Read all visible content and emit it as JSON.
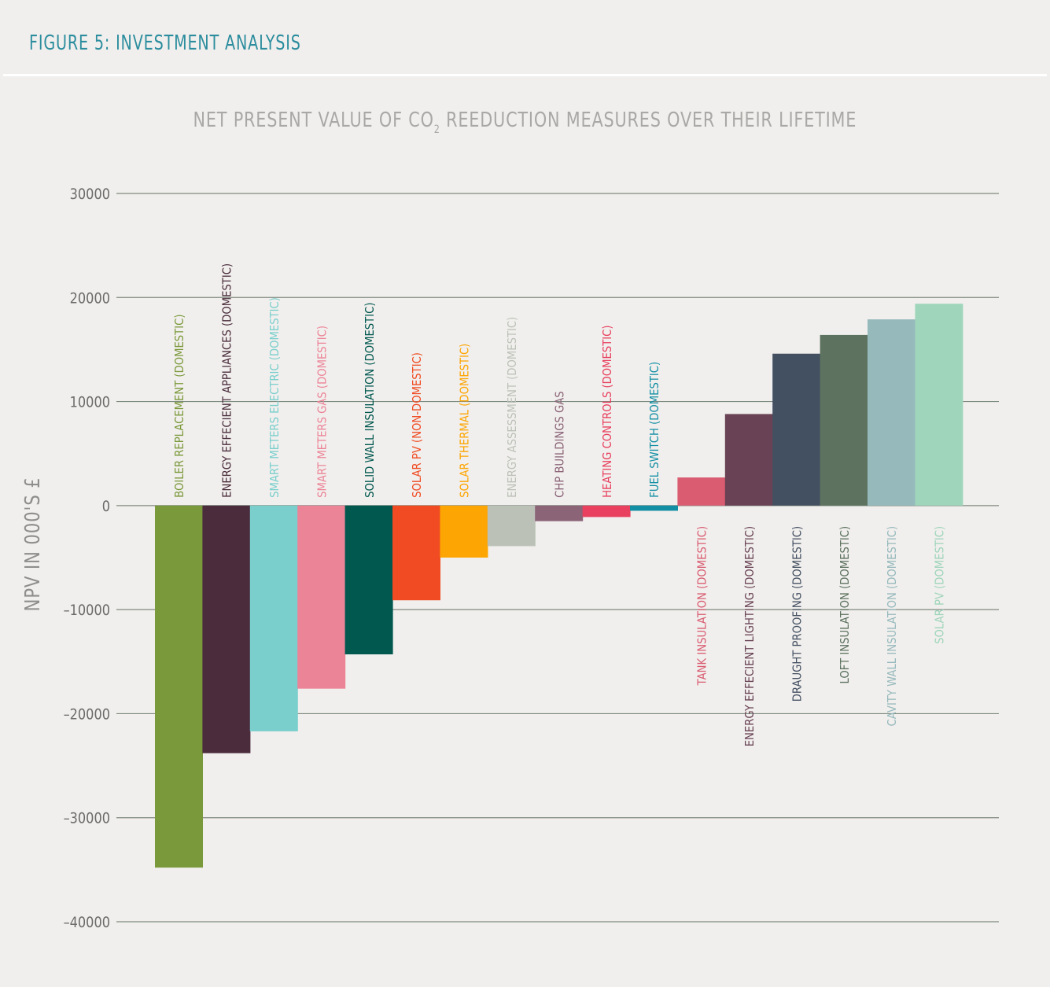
{
  "figure_title": "FIGURE 5: INVESTMENT ANALYSIS",
  "chart_data": {
    "type": "bar",
    "title_parts": {
      "before": "NET PRESENT VALUE OF CO",
      "sub": "2",
      "after": " REEDUCTION MEASURES OVER THEIR LIFETIME"
    },
    "ylabel": "NPV IN 000'S £",
    "xlabel": "",
    "ylim": [
      -40000,
      30000
    ],
    "yticks": [
      30000,
      20000,
      10000,
      0,
      -10000,
      -20000,
      -30000,
      -40000
    ],
    "grid": true,
    "bars": [
      {
        "label": "BOILER REPLACEMENT (DOMESTIC)",
        "value": -34800,
        "color": "#7a993b",
        "label_color": "#7a993b"
      },
      {
        "label": "ENERGY EFFECIENT APPLIANCES (DOMESTIC)",
        "value": -23800,
        "color": "#4a2c3c",
        "label_color": "#4a2c3c"
      },
      {
        "label": "SMART METERS ELECTRIC (DOMESTIC)",
        "value": -21700,
        "color": "#7acfcd",
        "label_color": "#7acfcd"
      },
      {
        "label": "SMART METERS GAS (DOMESTIC)",
        "value": -17600,
        "color": "#ec8497",
        "label_color": "#ec8497"
      },
      {
        "label": "SOLID WALL INSULATION (DOMESTIC)",
        "value": -14300,
        "color": "#01584f",
        "label_color": "#01584f"
      },
      {
        "label": "SOLAR PV (NON-DOMESTIC)",
        "value": -9100,
        "color": "#f04b22",
        "label_color": "#f04b22"
      },
      {
        "label": "SOLAR THERMAL (DOMESTIC)",
        "value": -5000,
        "color": "#fda502",
        "label_color": "#fda502"
      },
      {
        "label": "ENERGY ASSESSMENT (DOMESTIC)",
        "value": -3900,
        "color": "#bcc1b8",
        "label_color": "#bcc1b8"
      },
      {
        "label": "CHP BUILDINGS GAS",
        "value": -1500,
        "color": "#8b6478",
        "label_color": "#8b6478"
      },
      {
        "label": "HEATING CONTROLS (DOMESTIC)",
        "value": -1100,
        "color": "#e8405e",
        "label_color": "#e8405e"
      },
      {
        "label": "FUEL SWITCH (DOMESTIC)",
        "value": -500,
        "color": "#138fa5",
        "label_color": "#138fa5"
      },
      {
        "label": "TANK INSULATION (DOMESTIC)",
        "value": 2700,
        "color": "#d95c71",
        "label_color": "#d95c71"
      },
      {
        "label": "ENERGY EFFECIENT LIGHTING (DOMESTIC)",
        "value": 8800,
        "color": "#694355",
        "label_color": "#694355"
      },
      {
        "label": "DRAUGHT PROOFING (DOMESTIC)",
        "value": 14600,
        "color": "#435062",
        "label_color": "#435062"
      },
      {
        "label": "LOFT INSULATION (DOMESTIC)",
        "value": 16400,
        "color": "#5d725f",
        "label_color": "#5d725f"
      },
      {
        "label": "CAVITY WALL INSULATION (DOMESTIC)",
        "value": 17900,
        "color": "#96b9bc",
        "label_color": "#96b9bc"
      },
      {
        "label": "SOLAR PV (DOMESTIC)",
        "value": 19400,
        "color": "#9fd5bb",
        "label_color": "#9fd5bb"
      }
    ],
    "axis_color": "#7d8a7f",
    "tick_label_color": "#6b6b6a"
  }
}
